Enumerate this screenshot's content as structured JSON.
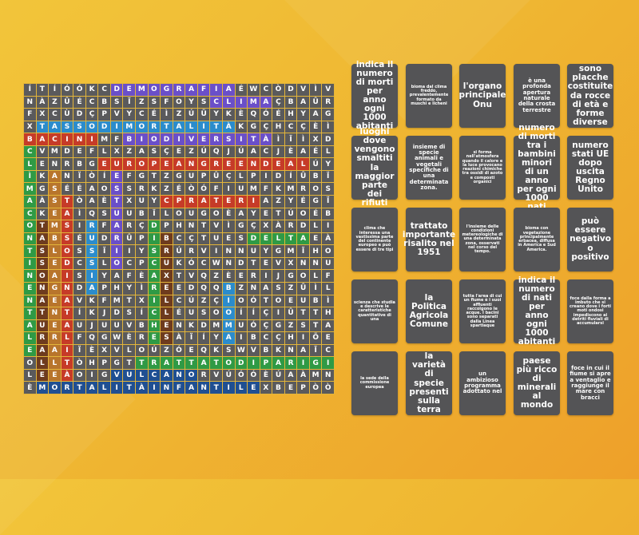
{
  "grid": {
    "rows": [
      "ÍTÍÓÓKCDEMOGRAFIAÉWCÒDVÌV",
      "NÀZÛÉCBSÏZSFOYSCLIMAÇBAÛR",
      "FXCÙDÇPVYCÉÌZÚÜYKÈQÓÉHYAG",
      "XTASSODIMORTALITÀKGÇHCÇÈÌ",
      "BACINIMFBIODIVERSITÀÌÏÌXD",
      "CVMDEFLXZASÇEZÚQJÚACJÈAÉL",
      "LENRBGEUROPEANGREENDEALÚY",
      "ÌKANÏÒÍEFGTZGUPÛÇLPIDÍÛBÏ",
      "MGSÉÉAOSSRKZÉÒÓFIUMFKMROS",
      "AÀSTÒAÈTXUYCPRATERIAZYÉGÏ",
      "CKEAÌQSUUBÏLOUGOÈAYETÚOÉB",
      "OTMSIRFARÇDPHNTVÌGÇXÀRDLI",
      "NABSÉUDRÛPIBCÇTUESDELTAEÀ",
      "TSLOSSÏIIYSRÚRVINNUYGMÏHO",
      "ISEDCSLOCPCUKÓCWNDTEVXNNU",
      "NOAISIYAFÈAXTVQZÈERIJGOLF",
      "ENGNDAPHYÌREEDQQBZNASZÛÌL",
      "NAEAVKFMTXILCÚZÇIOÓTOEUBÌ",
      "TTNTÍKJDSÍCLÉUSOOÍÍÇIÛTTH",
      "AUEAUJUUVBHENKDMMUÓÇGZSTA",
      "LRRLFQGWÈRESÀÏÍYAIBCÇHIÕE",
      "EAAIÏÈXVLOÚZÓEQKSWVBKNAÏC",
      "OLLTÒHPGTTRATTATODIPARIGI",
      "LEEÀOIGVULCANORVÚÓÓÈÚAÀMN",
      "ÈMORTALITÀINFANTILEXBEPÒÒ"
    ],
    "found_words": [
      {
        "word": "DEMOGRAFIA",
        "row": 1,
        "col": 8,
        "dir": "across",
        "color": "#6a4fc9"
      },
      {
        "word": "CLIMA",
        "row": 2,
        "col": 16,
        "dir": "across",
        "color": "#6a4fc9"
      },
      {
        "word": "TASSODIMORTALITÀ",
        "row": 4,
        "col": 2,
        "dir": "across",
        "color": "#2b8ccc"
      },
      {
        "word": "BACINI",
        "row": 5,
        "col": 1,
        "dir": "across",
        "color": "#c63b28"
      },
      {
        "word": "BIODIVERSITÀ",
        "row": 5,
        "col": 9,
        "dir": "across",
        "color": "#6a4fc9"
      },
      {
        "word": "EUROPEANGREENDEAL",
        "row": 7,
        "col": 7,
        "dir": "across",
        "color": "#c63b28"
      },
      {
        "word": "PRATERIA",
        "row": 10,
        "col": 12,
        "dir": "across",
        "color": "#c63b28"
      },
      {
        "word": "DELTA",
        "row": 13,
        "col": 19,
        "dir": "across",
        "color": "#2f9a45"
      },
      {
        "word": "TRATTATODIPARIGI",
        "row": 23,
        "col": 10,
        "dir": "across",
        "color": "#2f9a45"
      },
      {
        "word": "VULCANO",
        "row": 24,
        "col": 8,
        "dir": "across",
        "color": "#1f4f92"
      },
      {
        "word": "MORTALITÀINFANTILE",
        "row": 25,
        "col": 2,
        "dir": "across",
        "color": "#1f4f92"
      },
      {
        "word": "CLIMACONTINENTALE",
        "row": 6,
        "col": 1,
        "dir": "down",
        "color": "#2f9a45"
      },
      {
        "word": "TASSONATURALE",
        "row": 12,
        "col": 2,
        "dir": "down",
        "color": "#6e3b1e"
      },
      {
        "word": "ASSEMBLEAGENERALE",
        "row": 8,
        "col": 3,
        "dir": "down",
        "color": "#b8752c"
      },
      {
        "word": "TASSODINATALITÀ",
        "row": 10,
        "col": 4,
        "dir": "down",
        "color": "#c63b28"
      },
      {
        "word": "RUSSIA",
        "row": 12,
        "col": 6,
        "dir": "down",
        "color": "#2b8ccc"
      },
      {
        "word": "ESTUARIO",
        "row": 8,
        "col": 8,
        "dir": "down",
        "color": "#6a4fc9"
      },
      {
        "word": "DISCARICHE",
        "row": 12,
        "col": 11,
        "dir": "down",
        "color": "#2f9a45"
      },
      {
        "word": "BRUXELLES",
        "row": 13,
        "col": 12,
        "dir": "down",
        "color": "#6e3b1e"
      },
      {
        "word": "BIOMA",
        "row": 17,
        "col": 17,
        "dir": "down",
        "color": "#2b8ccc"
      }
    ]
  },
  "cards": [
    {
      "text": "indica il numero di morti per anno ogni 1000 abitanti",
      "size": "l"
    },
    {
      "text": "bioma dal clima freddo, prevalentemente formato da muschi e licheni",
      "size": "s"
    },
    {
      "text": "l'organo principale Onu",
      "size": "l"
    },
    {
      "text": "è una profonda apertura naturale della crosta terrestre",
      "size": "m"
    },
    {
      "text": "sono placche costituite da rocce di età e forme diverse",
      "size": "l"
    },
    {
      "text": "luoghi dove vengono smaltiti la maggior parte dei rifiuti",
      "size": "l"
    },
    {
      "text": "insieme di specie animali e vegetali specifiche di una determinata zona.",
      "size": "m"
    },
    {
      "text": "si forma nell'atmosfera quando il calore e la luce provocano reazioni chimiche tra ossidi di azoto e composti organici",
      "size": "s"
    },
    {
      "text": "numero di morti tra i bambini minori di un anno per ogni 1000 nati",
      "size": "l"
    },
    {
      "text": "numero stati UE dopo uscita Regno Unito",
      "size": "l"
    },
    {
      "text": "clima che interessa una vastissima parte del continente europeo e può essere di tre tipi",
      "size": "s"
    },
    {
      "text": "trattato importante risalito nel 1951",
      "size": "l"
    },
    {
      "text": "l'insieme delle condizioni metereologiche di una determinata zona, osservati nel corso del tempo.",
      "size": "s"
    },
    {
      "text": "bioma con vegetazione principalmente erbacea, diffusa in America e Sud America.",
      "size": "s"
    },
    {
      "text": "può essere negativo o positivo",
      "size": "l"
    },
    {
      "text": "scienza che studia e descrive le caratteristiche quantitative di una",
      "size": "s"
    },
    {
      "text": "la Politica Agricola Comune",
      "size": "l"
    },
    {
      "text": "tutta l'area di cui un fiume è i suoi affluenti raccolgono le acque. I bacini sono separati dalla Linea spartiaque",
      "size": "s"
    },
    {
      "text": "indica il numero di nati per anno ogni 1000 abitanti",
      "size": "l"
    },
    {
      "text": "foce dalla forma a imbuto che si creano dove i forti moti ondosi impediscono ai detriti fluviali di accumularsi",
      "size": "s"
    },
    {
      "text": "la sede della commissione europea",
      "size": "s"
    },
    {
      "text": "la varietà di specie presenti sulla terra",
      "size": "l"
    },
    {
      "text": "un ambizioso programma adottato nel",
      "size": "m"
    },
    {
      "text": "paese più ricco di minerali al mondo",
      "size": "l"
    },
    {
      "text": "foce in cui il fiume si apre a ventaglio e raggiunge il mare con bracci",
      "size": "m"
    }
  ],
  "colors": {
    "cell": "#5a5a5c",
    "card": "#545456",
    "grid_lines": "#e3b53a",
    "background": "#f0b834"
  }
}
